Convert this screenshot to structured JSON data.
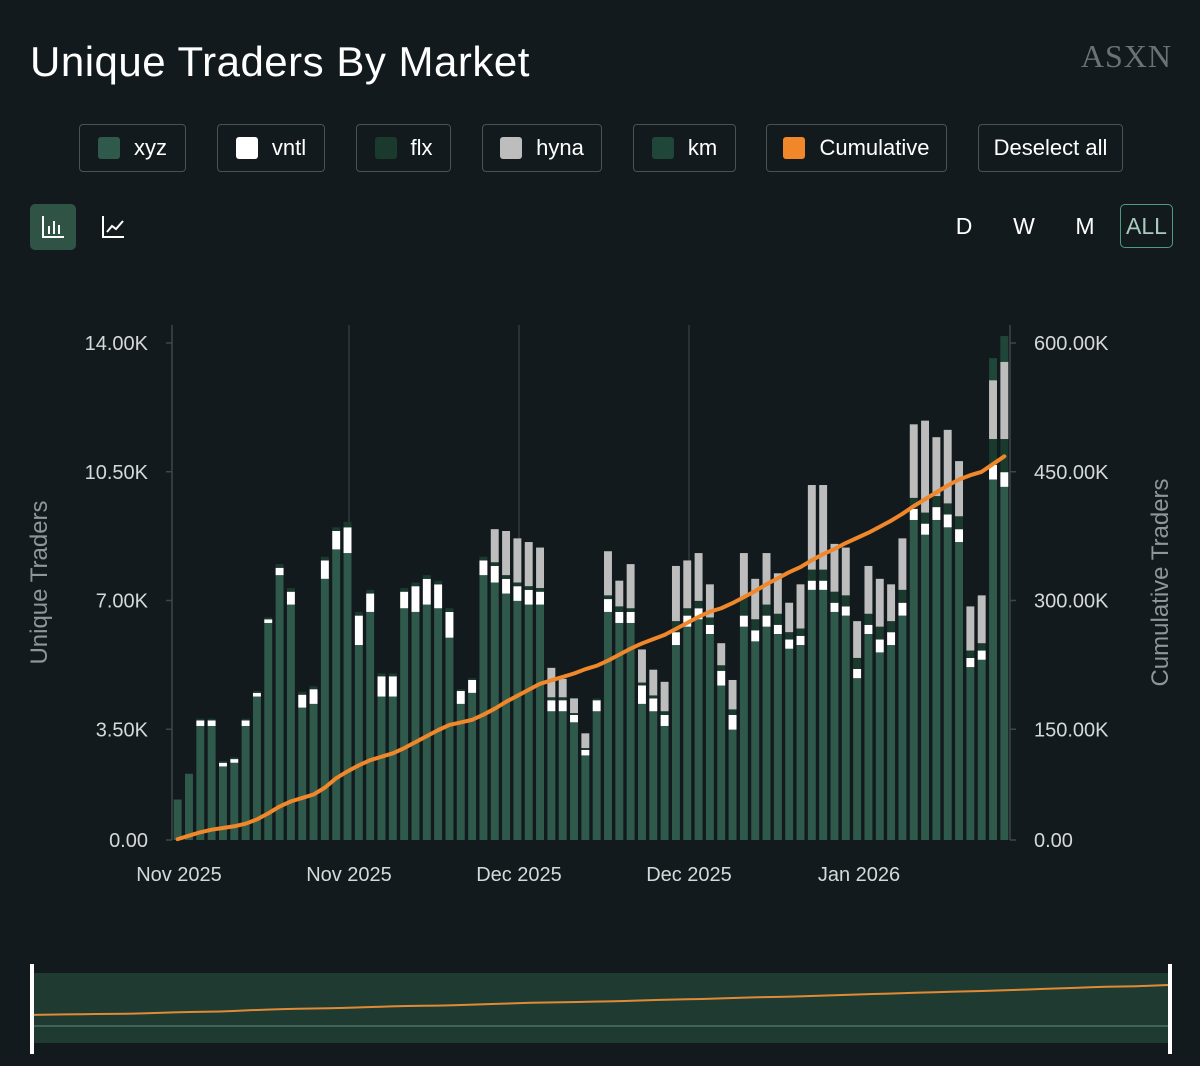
{
  "header": {
    "title": "Unique Traders By Market",
    "brand": "ASXN"
  },
  "legend": {
    "items": [
      {
        "label": "xyz",
        "color": "#2f5a4b"
      },
      {
        "label": "vntl",
        "color": "#ffffff"
      },
      {
        "label": "flx",
        "color": "#1a3a2e"
      },
      {
        "label": "hyna",
        "color": "#bdbdbd"
      },
      {
        "label": "km",
        "color": "#1f4638"
      },
      {
        "label": "Cumulative",
        "color": "#f0872a"
      }
    ],
    "deselect_label": "Deselect all"
  },
  "toolbar": {
    "bar_icon": "bar-chart-icon",
    "line_icon": "line-chart-icon",
    "active_view": "bar"
  },
  "ranges": {
    "items": [
      "D",
      "W",
      "M",
      "ALL"
    ],
    "active": "ALL"
  },
  "chart_data": {
    "type": "bar",
    "stacked": true,
    "ylabel": "Unique Traders",
    "y2label": "Cumulative Traders",
    "ylim": [
      0,
      14000
    ],
    "y2lim": [
      0,
      600000
    ],
    "yticks": [
      "0.00",
      "3.50K",
      "7.00K",
      "10.50K",
      "14.00K"
    ],
    "y2ticks": [
      "0.00",
      "150.00K",
      "300.00K",
      "450.00K",
      "600.00K"
    ],
    "xtick_labels": [
      "Nov 2025",
      "Nov 2025",
      "Dec 2025",
      "Dec 2025",
      "Jan 2026"
    ],
    "grid": "vertical",
    "series": [
      {
        "name": "xyz",
        "color": "#2f5a4b",
        "values": [
          1100,
          1800,
          3100,
          3100,
          2000,
          2100,
          3100,
          3900,
          5900,
          7200,
          6400,
          3600,
          3700,
          7100,
          7900,
          7800,
          5300,
          6200,
          3900,
          3900,
          6300,
          6200,
          6400,
          6300,
          5500,
          3700,
          4000,
          7200,
          7000,
          6700,
          6500,
          6400,
          6400,
          3500,
          3500,
          3200,
          2300,
          3500,
          6200,
          5900,
          5900,
          3700,
          3500,
          3100,
          5300,
          5800,
          6000,
          5600,
          4200,
          3000,
          5800,
          5400,
          5800,
          5600,
          5200,
          5300,
          6800,
          6800,
          6200,
          6100,
          4400,
          5600,
          5100,
          5300,
          6100,
          8700,
          8300,
          8700,
          8500,
          8100,
          4700,
          4900,
          9800,
          9600
        ]
      },
      {
        "name": "vntl",
        "color": "#ffffff",
        "values": [
          0,
          0,
          150,
          150,
          100,
          100,
          150,
          100,
          100,
          200,
          350,
          350,
          400,
          500,
          500,
          700,
          800,
          500,
          550,
          550,
          450,
          700,
          700,
          650,
          700,
          350,
          350,
          400,
          450,
          400,
          400,
          400,
          350,
          300,
          300,
          200,
          150,
          300,
          350,
          300,
          300,
          500,
          350,
          300,
          350,
          300,
          300,
          250,
          400,
          400,
          300,
          300,
          300,
          250,
          250,
          250,
          250,
          250,
          250,
          250,
          250,
          250,
          350,
          350,
          350,
          300,
          300,
          350,
          350,
          350,
          250,
          250,
          400,
          400
        ]
      },
      {
        "name": "flx",
        "color": "#1a3a2e",
        "values": [
          0,
          0,
          50,
          50,
          50,
          50,
          50,
          50,
          50,
          100,
          100,
          80,
          80,
          100,
          100,
          150,
          100,
          100,
          80,
          80,
          100,
          100,
          100,
          100,
          100,
          50,
          50,
          100,
          100,
          100,
          100,
          100,
          100,
          80,
          80,
          50,
          50,
          50,
          100,
          150,
          100,
          80,
          80,
          100,
          300,
          200,
          200,
          200,
          150,
          150,
          500,
          300,
          300,
          300,
          200,
          200,
          300,
          300,
          300,
          300,
          300,
          300,
          350,
          300,
          350,
          300,
          300,
          300,
          300,
          350,
          200,
          200,
          700,
          900
        ]
      },
      {
        "name": "hyna",
        "color": "#bdbdbd",
        "values": [
          0,
          0,
          0,
          0,
          0,
          0,
          0,
          0,
          0,
          0,
          0,
          0,
          0,
          0,
          0,
          0,
          0,
          0,
          0,
          0,
          0,
          0,
          0,
          0,
          0,
          0,
          0,
          0,
          900,
          1200,
          1200,
          1200,
          1100,
          800,
          500,
          400,
          400,
          0,
          1200,
          700,
          1200,
          900,
          700,
          800,
          1500,
          1300,
          1300,
          900,
          600,
          800,
          1200,
          1100,
          1400,
          1100,
          800,
          1200,
          2300,
          2300,
          1300,
          1300,
          1000,
          1300,
          1300,
          1000,
          1400,
          2000,
          2500,
          1600,
          2000,
          1500,
          1200,
          1300,
          1600,
          2100
        ]
      },
      {
        "name": "km",
        "color": "#1f4638",
        "values": [
          0,
          0,
          0,
          0,
          0,
          0,
          0,
          0,
          0,
          0,
          0,
          0,
          0,
          0,
          0,
          0,
          0,
          0,
          0,
          0,
          0,
          0,
          0,
          0,
          0,
          0,
          0,
          0,
          0,
          0,
          0,
          0,
          0,
          0,
          0,
          0,
          0,
          0,
          0,
          0,
          0,
          0,
          0,
          0,
          0,
          0,
          0,
          0,
          0,
          0,
          0,
          0,
          0,
          0,
          0,
          0,
          0,
          0,
          0,
          0,
          0,
          0,
          0,
          0,
          0,
          0,
          0,
          0,
          0,
          0,
          0,
          0,
          600,
          700
        ]
      }
    ],
    "cumulative": {
      "name": "Cumulative",
      "color": "#f0872a",
      "values": [
        1000,
        5000,
        9000,
        12000,
        14000,
        16000,
        19000,
        24000,
        31000,
        39000,
        45000,
        49000,
        53000,
        61000,
        72000,
        80000,
        87000,
        93000,
        97000,
        101000,
        107000,
        114000,
        121000,
        128000,
        134000,
        137000,
        140000,
        146000,
        153000,
        161000,
        168000,
        175000,
        182000,
        186000,
        190000,
        194000,
        199000,
        203000,
        209000,
        216000,
        223000,
        229000,
        234000,
        239000,
        246000,
        253000,
        260000,
        266000,
        270000,
        276000,
        283000,
        290000,
        298000,
        305000,
        312000,
        318000,
        326000,
        333000,
        339000,
        346000,
        352000,
        358000,
        365000,
        372000,
        380000,
        389000,
        397000,
        405000,
        413000,
        420000,
        425000,
        429000,
        438000,
        447000
      ]
    }
  }
}
